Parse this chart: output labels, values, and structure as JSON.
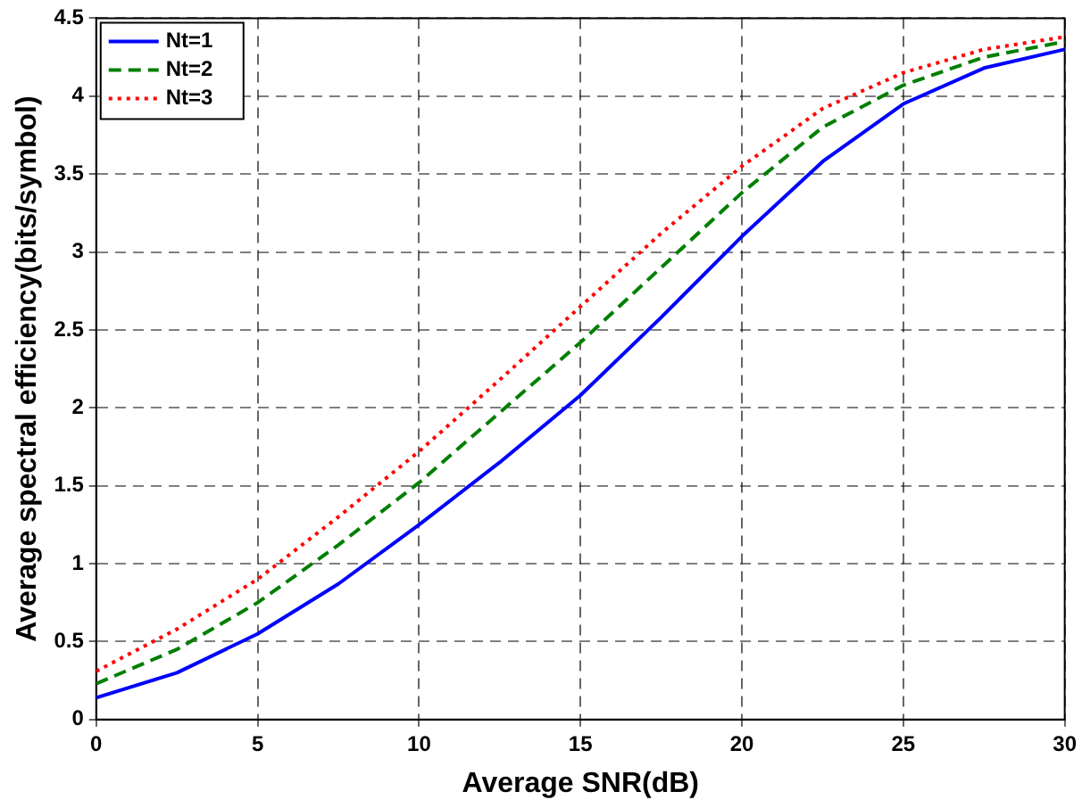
{
  "chart_data": {
    "type": "line",
    "xlabel": "Average SNR(dB)",
    "ylabel": "Average spectral efficiency(bits/symbol)",
    "x": [
      0,
      2.5,
      5,
      7.5,
      10,
      12.5,
      15,
      17.5,
      20,
      22.5,
      25,
      27.5,
      30
    ],
    "series": [
      {
        "name": "Nt=1",
        "color": "#0000ff",
        "line_style": "solid",
        "values": [
          0.14,
          0.3,
          0.55,
          0.87,
          1.25,
          1.65,
          2.08,
          2.58,
          3.1,
          3.58,
          3.95,
          4.18,
          4.3
        ]
      },
      {
        "name": "Nt=2",
        "color": "#007f00",
        "line_style": "dashed",
        "values": [
          0.23,
          0.45,
          0.75,
          1.12,
          1.52,
          1.97,
          2.42,
          2.9,
          3.38,
          3.8,
          4.07,
          4.25,
          4.35
        ]
      },
      {
        "name": "Nt=3",
        "color": "#ff0000",
        "line_style": "dotted",
        "values": [
          0.31,
          0.58,
          0.9,
          1.3,
          1.72,
          2.18,
          2.65,
          3.12,
          3.55,
          3.92,
          4.15,
          4.3,
          4.38
        ]
      }
    ],
    "xlim": [
      0,
      30
    ],
    "xticks": [
      0,
      5,
      10,
      15,
      20,
      25,
      30
    ],
    "ylim": [
      0,
      4.5
    ],
    "yticks": [
      0,
      0.5,
      1,
      1.5,
      2,
      2.5,
      3,
      3.5,
      4,
      4.5
    ],
    "grid": true,
    "legend": "top left",
    "marker": "none"
  }
}
